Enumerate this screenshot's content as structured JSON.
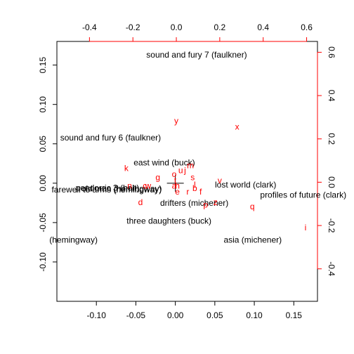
{
  "chart_data": {
    "type": "scatter",
    "title": "",
    "xlim": [
      -0.15,
      0.18
    ],
    "ylim": [
      -0.15,
      0.18
    ],
    "x_ticks": [
      -0.1,
      -0.05,
      0.0,
      0.05,
      0.1,
      0.15
    ],
    "x_tick_labels": [
      "-0.10",
      "-0.05",
      "0.00",
      "0.05",
      "0.10",
      "0.15"
    ],
    "y_ticks": [
      -0.1,
      -0.05,
      0.0,
      0.05,
      0.1,
      0.15
    ],
    "y_tick_labels": [
      "-0.10",
      "-0.05",
      "0.00",
      "0.05",
      "0.10",
      "0.15"
    ],
    "top_axis": {
      "range": [
        -0.55,
        0.65
      ],
      "ticks": [
        -0.4,
        -0.2,
        0.0,
        0.2,
        0.4,
        0.6
      ],
      "tick_labels": [
        "-0.4",
        "-0.2",
        "0.0",
        "0.2",
        "0.4",
        "0.6"
      ],
      "color": "#ff0000"
    },
    "right_axis": {
      "range": [
        -0.55,
        0.65
      ],
      "ticks": [
        -0.4,
        -0.2,
        0.0,
        0.2,
        0.4,
        0.6
      ],
      "tick_labels": [
        "-0.4",
        "-0.2",
        "0.0",
        "0.2",
        "0.4",
        "0.6"
      ],
      "color": "#ff0000"
    },
    "documents": [
      {
        "label": "sound and fury 7 (faulkner)",
        "x": 0.027,
        "y": 0.163
      },
      {
        "label": "sound and fury 6 (faulkner)",
        "x": -0.082,
        "y": 0.058
      },
      {
        "label": "east wind (buck)",
        "x": -0.014,
        "y": 0.026
      },
      {
        "label": "farewell to arms (hemingway)",
        "x": -0.087,
        "y": -0.008
      },
      {
        "label": "pendorric 3 (holt)",
        "x": -0.086,
        "y": -0.006
      },
      {
        "label": "old man (hemingway)",
        "x": -0.068,
        "y": -0.007
      },
      {
        "label": "lost world (clark)",
        "x": 0.089,
        "y": -0.002
      },
      {
        "label": "profiles of future (clark)",
        "x": 0.162,
        "y": -0.015
      },
      {
        "label": "drifters (michener)",
        "x": 0.024,
        "y": -0.025
      },
      {
        "label": "three daughters (buck)",
        "x": -0.008,
        "y": -0.048
      },
      {
        "label": "(hemingway)",
        "x": -0.129,
        "y": -0.072
      },
      {
        "label": "asia (michener)",
        "x": 0.098,
        "y": -0.072
      }
    ],
    "terms": [
      {
        "label": "y",
        "x": 0.0,
        "y": 0.283
      },
      {
        "label": "x",
        "x": 0.28,
        "y": 0.256
      },
      {
        "label": "k",
        "x": -0.23,
        "y": 0.065
      },
      {
        "label": "m",
        "x": 0.065,
        "y": 0.078
      },
      {
        "label": "u",
        "x": 0.02,
        "y": 0.055
      },
      {
        "label": "j",
        "x": 0.04,
        "y": 0.055
      },
      {
        "label": "o",
        "x": -0.01,
        "y": 0.037
      },
      {
        "label": "g",
        "x": -0.085,
        "y": 0.022
      },
      {
        "label": "s",
        "x": 0.075,
        "y": 0.022
      },
      {
        "label": "v",
        "x": 0.2,
        "y": 0.008
      },
      {
        "label": "t",
        "x": -0.005,
        "y": 0.008
      },
      {
        "label": "l",
        "x": 0.085,
        "y": -0.012
      },
      {
        "label": "a",
        "x": -0.01,
        "y": -0.017
      },
      {
        "label": "h",
        "x": 0.005,
        "y": -0.017
      },
      {
        "label": "b",
        "x": 0.085,
        "y": -0.028
      },
      {
        "label": "f",
        "x": 0.112,
        "y": -0.044
      },
      {
        "label": "r",
        "x": 0.053,
        "y": -0.044
      },
      {
        "label": "e",
        "x": 0.005,
        "y": -0.044
      },
      {
        "label": "n",
        "x": -0.215,
        "y": -0.017
      },
      {
        "label": "c",
        "x": -0.145,
        "y": -0.017
      },
      {
        "label": "w",
        "x": -0.13,
        "y": -0.017
      },
      {
        "label": "d",
        "x": -0.165,
        "y": -0.092
      },
      {
        "label": "z",
        "x": 0.18,
        "y": -0.092
      },
      {
        "label": "p",
        "x": 0.135,
        "y": -0.104
      },
      {
        "label": "q",
        "x": 0.35,
        "y": -0.112
      },
      {
        "label": "i",
        "x": 0.595,
        "y": -0.21
      }
    ],
    "xlabel": "",
    "ylabel": "",
    "grid": false,
    "legend": "none",
    "document_color": "#000000",
    "term_color": "#ff0000"
  }
}
